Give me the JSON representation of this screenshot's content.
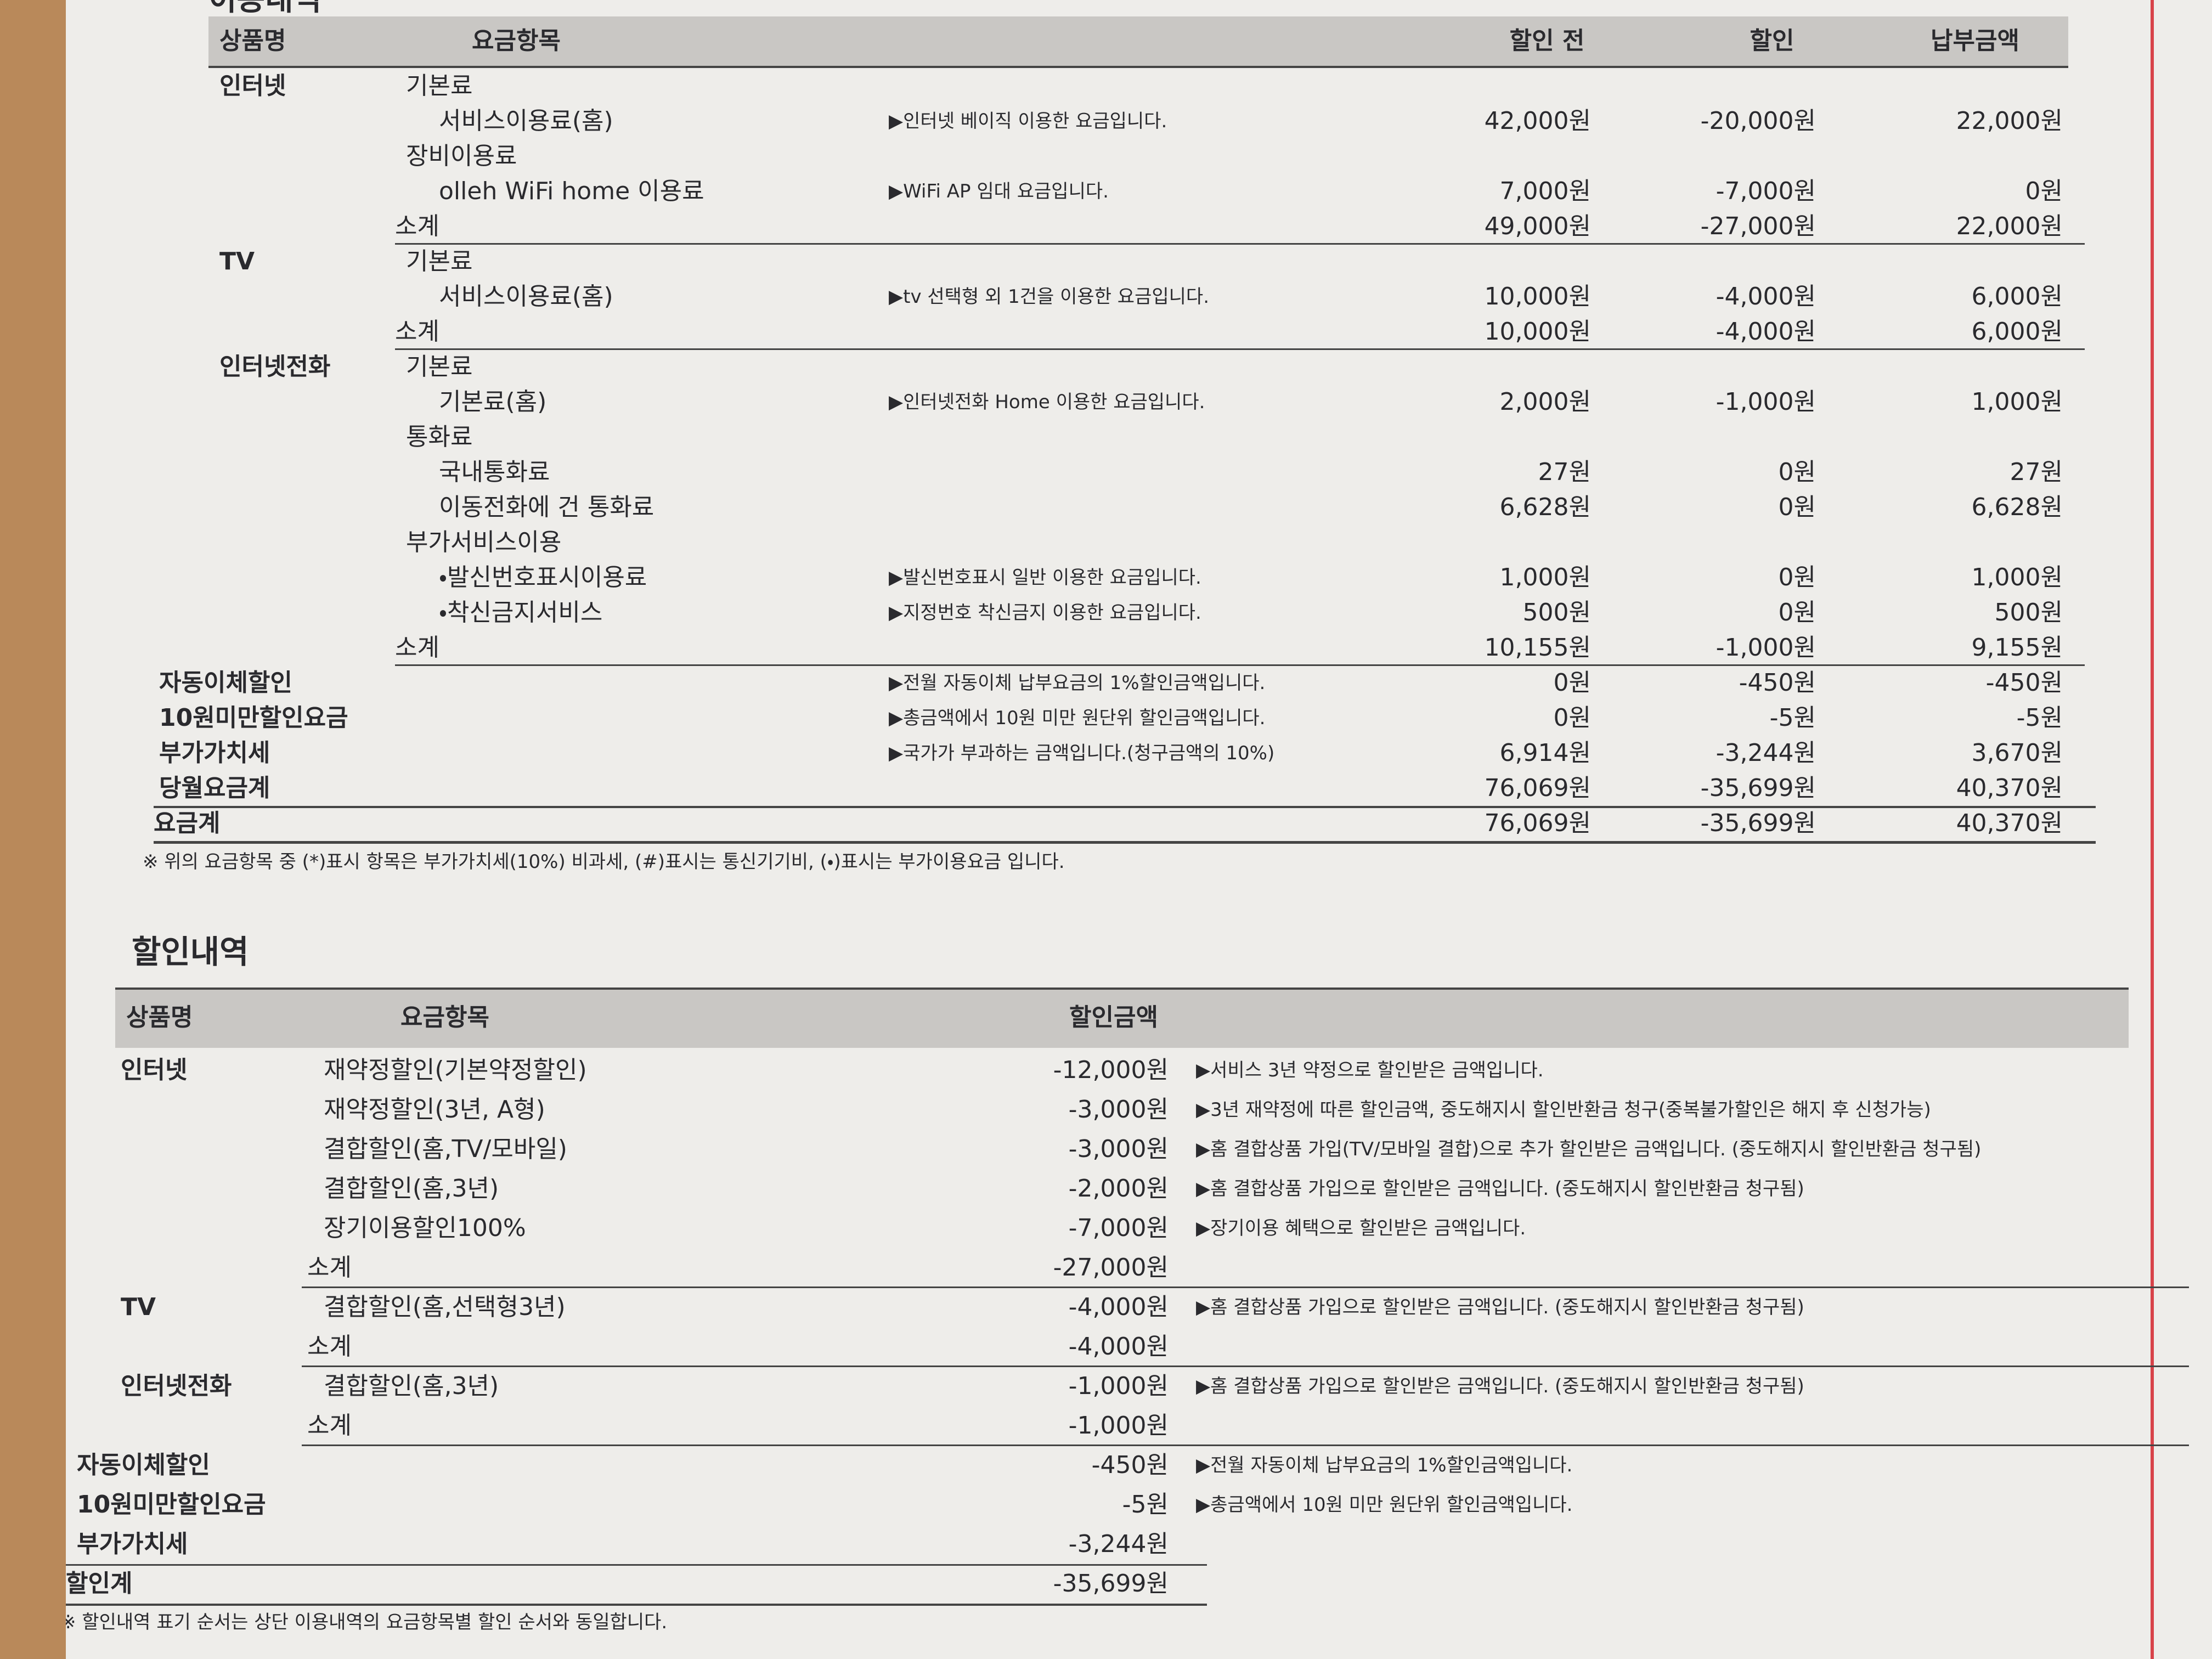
{
  "usage": {
    "title": "이용내역",
    "header": {
      "product": "상품명",
      "item": "요금항목",
      "before": "할인 전",
      "discount": "할인",
      "pay": "납부금액"
    },
    "groups": [
      {
        "product": "인터넷",
        "sections": [
          {
            "label": "기본료",
            "items": [
              {
                "item": "서비스이용료(홈)",
                "desc": "▶인터넷 베이직 이용한 요금입니다.",
                "before": "42,000원",
                "discount": "-20,000원",
                "pay": "22,000원"
              }
            ]
          },
          {
            "label": "장비이용료",
            "items": [
              {
                "item": "olleh WiFi home 이용료",
                "desc": "▶WiFi AP 임대 요금입니다.",
                "before": "7,000원",
                "discount": "-7,000원",
                "pay": "0원"
              }
            ]
          }
        ],
        "subtotal": {
          "label": "소계",
          "before": "49,000원",
          "discount": "-27,000원",
          "pay": "22,000원"
        }
      },
      {
        "product": "TV",
        "sections": [
          {
            "label": "기본료",
            "items": [
              {
                "item": "서비스이용료(홈)",
                "desc": "▶tv 선택형 외 1건을 이용한 요금입니다.",
                "before": "10,000원",
                "discount": "-4,000원",
                "pay": "6,000원"
              }
            ]
          }
        ],
        "subtotal": {
          "label": "소계",
          "before": "10,000원",
          "discount": "-4,000원",
          "pay": "6,000원"
        }
      },
      {
        "product": "인터넷전화",
        "sections": [
          {
            "label": "기본료",
            "items": [
              {
                "item": "기본료(홈)",
                "desc": "▶인터넷전화 Home 이용한 요금입니다.",
                "before": "2,000원",
                "discount": "-1,000원",
                "pay": "1,000원"
              }
            ]
          },
          {
            "label": "통화료",
            "items": [
              {
                "item": "국내통화료",
                "before": "27원",
                "discount": "0원",
                "pay": "27원"
              },
              {
                "item": "이동전화에 건 통화료",
                "before": "6,628원",
                "discount": "0원",
                "pay": "6,628원"
              }
            ]
          },
          {
            "label": "부가서비스이용",
            "items": [
              {
                "item": "・발신번호표시이용료",
                "desc": "▶발신번호표시 일반 이용한 요금입니다.",
                "before": "1,000원",
                "discount": "0원",
                "pay": "1,000원"
              },
              {
                "item": "・착신금지서비스",
                "desc": "▶지정번호 착신금지 이용한 요금입니다.",
                "before": "500원",
                "discount": "0원",
                "pay": "500원"
              }
            ]
          }
        ],
        "subtotal": {
          "label": "소계",
          "before": "10,155원",
          "discount": "-1,000원",
          "pay": "9,155원"
        }
      }
    ],
    "summary": [
      {
        "label": "자동이체할인",
        "desc": "▶전월 자동이체 납부요금의 1%할인금액입니다.",
        "before": "0원",
        "discount": "-450원",
        "pay": "-450원"
      },
      {
        "label": "10원미만할인요금",
        "desc": "▶총금액에서 10원 미만 원단위 할인금액입니다.",
        "before": "0원",
        "discount": "-5원",
        "pay": "-5원"
      },
      {
        "label": "부가가치세",
        "desc": "▶국가가 부과하는 금액입니다.(청구금액의 10%)",
        "before": "6,914원",
        "discount": "-3,244원",
        "pay": "3,670원"
      },
      {
        "label": "당월요금계",
        "before": "76,069원",
        "discount": "-35,699원",
        "pay": "40,370원"
      }
    ],
    "total": {
      "label": "요금계",
      "before": "76,069원",
      "discount": "-35,699원",
      "pay": "40,370원"
    },
    "note": "※ 위의 요금항목 중 (*)표시 항목은 부가가치세(10%) 비과세, (#)표시는 통신기기비, (・)표시는 부가이용요금 입니다."
  },
  "discounts": {
    "title": "할인내역",
    "header": {
      "product": "상품명",
      "item": "요금항목",
      "amount": "할인금액"
    },
    "groups": [
      {
        "product": "인터넷",
        "items": [
          {
            "item": "재약정할인(기본약정할인)",
            "amount": "-12,000원",
            "desc": "▶서비스 3년 약정으로 할인받은 금액입니다."
          },
          {
            "item": "재약정할인(3년, A형)",
            "amount": "-3,000원",
            "desc": "▶3년 재약정에 따른 할인금액, 중도해지시 할인반환금 청구(중복불가할인은 해지 후 신청가능)"
          },
          {
            "item": "결합할인(홈,TV/모바일)",
            "amount": "-3,000원",
            "desc": "▶홈 결합상품 가입(TV/모바일 결합)으로 추가 할인받은 금액입니다. (중도해지시 할인반환금 청구됨)"
          },
          {
            "item": "결합할인(홈,3년)",
            "amount": "-2,000원",
            "desc": "▶홈 결합상품 가입으로 할인받은 금액입니다. (중도해지시 할인반환금 청구됨)"
          },
          {
            "item": "장기이용할인100%",
            "amount": "-7,000원",
            "desc": "▶장기이용 혜택으로 할인받은 금액입니다."
          }
        ],
        "subtotal": {
          "label": "소계",
          "amount": "-27,000원"
        }
      },
      {
        "product": "TV",
        "items": [
          {
            "item": "결합할인(홈,선택형3년)",
            "amount": "-4,000원",
            "desc": "▶홈 결합상품 가입으로 할인받은 금액입니다. (중도해지시 할인반환금 청구됨)"
          }
        ],
        "subtotal": {
          "label": "소계",
          "amount": "-4,000원"
        }
      },
      {
        "product": "인터넷전화",
        "items": [
          {
            "item": "결합할인(홈,3년)",
            "amount": "-1,000원",
            "desc": "▶홈 결합상품 가입으로 할인받은 금액입니다. (중도해지시 할인반환금 청구됨)"
          }
        ],
        "subtotal": {
          "label": "소계",
          "amount": "-1,000원"
        }
      }
    ],
    "summary": [
      {
        "label": "자동이체할인",
        "amount": "-450원",
        "desc": "▶전월 자동이체 납부요금의 1%할인금액입니다."
      },
      {
        "label": "10원미만할인요금",
        "amount": "-5원",
        "desc": "▶총금액에서 10원 미만 원단위 할인금액입니다."
      },
      {
        "label": "부가가치세",
        "amount": "-3,244원"
      }
    ],
    "total": {
      "label": "할인계",
      "amount": "-35,699원"
    },
    "note": "※ 할인내역 표기 순서는 상단 이용내역의 요금항목별 할인 순서와 동일합니다."
  }
}
